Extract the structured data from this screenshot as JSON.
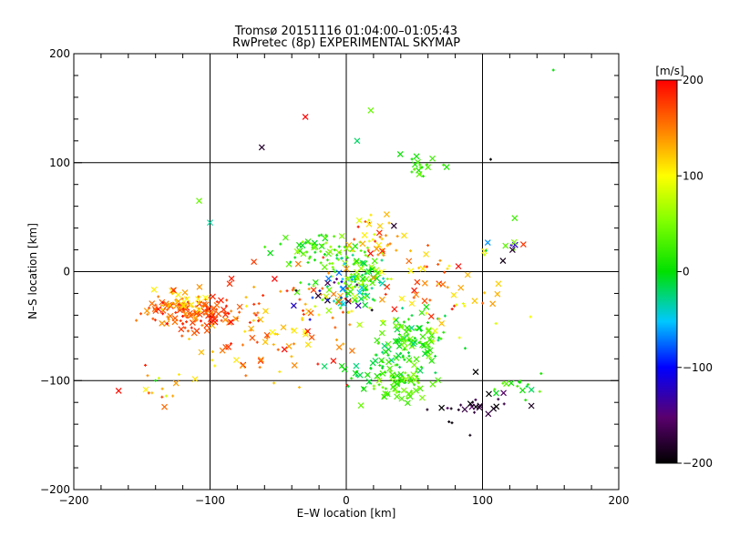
{
  "chart_data": {
    "type": "scatter",
    "title": "Tromsø 20151116 01:04:00–01:05:43",
    "subtitle": "RwPretec (8p) EXPERIMENTAL SKYMAP",
    "xlabel": "E–W location [km]",
    "ylabel": "N–S location [km]",
    "xlim": [
      -200,
      200
    ],
    "ylim": [
      -200,
      200
    ],
    "xticks": [
      "−200",
      "−100",
      "0",
      "100",
      "200"
    ],
    "yticks": [
      "−200",
      "−100",
      "0",
      "100",
      "200"
    ],
    "grid": "major lines at ±100 and 0",
    "colorbar": {
      "label": "[m/s]",
      "range": [
        -200,
        200
      ],
      "ticks": [
        "200",
        "100",
        "0",
        "−100",
        "−200"
      ],
      "colormap": "black-purple-blue-cyan-green-yellow-red"
    },
    "marker_legend": {
      "large_marker": "x",
      "small_marker": "+"
    },
    "clusters": [
      {
        "cx": -115,
        "cy": -38,
        "sx": 18,
        "sy": 8,
        "n": 110,
        "vmin": 140,
        "vmax": 200
      },
      {
        "cx": -120,
        "cy": -30,
        "sx": 10,
        "sy": 6,
        "n": 40,
        "vmin": 100,
        "vmax": 180
      },
      {
        "cx": 48,
        "cy": -65,
        "sx": 12,
        "sy": 14,
        "n": 110,
        "vmin": -30,
        "vmax": 50
      },
      {
        "cx": 38,
        "cy": -105,
        "sx": 12,
        "sy": 7,
        "n": 60,
        "vmin": 10,
        "vmax": 60
      },
      {
        "cx": -25,
        "cy": 22,
        "sx": 15,
        "sy": 8,
        "n": 60,
        "vmin": -10,
        "vmax": 60
      },
      {
        "cx": 10,
        "cy": -5,
        "sx": 10,
        "sy": 15,
        "n": 110,
        "vmin": -50,
        "vmax": 70
      },
      {
        "cx": 55,
        "cy": 95,
        "sx": 8,
        "sy": 8,
        "n": 20,
        "vmin": 0,
        "vmax": 50
      },
      {
        "cx": -60,
        "cy": -50,
        "sx": 30,
        "sy": 25,
        "n": 110,
        "vmin": 100,
        "vmax": 200
      },
      {
        "cx": 20,
        "cy": -90,
        "sx": 12,
        "sy": 8,
        "n": 35,
        "vmin": -20,
        "vmax": 30
      },
      {
        "cx": 100,
        "cy": -125,
        "sx": 20,
        "sy": 8,
        "n": 25,
        "vmin": -200,
        "vmax": -150
      },
      {
        "cx": 70,
        "cy": -20,
        "sx": 25,
        "sy": 20,
        "n": 60,
        "vmin": 80,
        "vmax": 200
      },
      {
        "cx": -10,
        "cy": -20,
        "sx": 12,
        "sy": 12,
        "n": 50,
        "vmin": -200,
        "vmax": 200
      },
      {
        "cx": 20,
        "cy": 30,
        "sx": 10,
        "sy": 15,
        "n": 40,
        "vmin": 80,
        "vmax": 200
      },
      {
        "cx": -130,
        "cy": -110,
        "sx": 15,
        "sy": 10,
        "n": 15,
        "vmin": 80,
        "vmax": 200
      },
      {
        "cx": 130,
        "cy": -105,
        "sx": 8,
        "sy": 5,
        "n": 15,
        "vmin": -20,
        "vmax": 40
      },
      {
        "cx": 115,
        "cy": 20,
        "sx": 10,
        "sy": 10,
        "n": 10,
        "vmin": -200,
        "vmax": 200
      }
    ],
    "points": [
      {
        "x": 152,
        "y": 185,
        "v": 0,
        "m": "+"
      },
      {
        "x": 18,
        "y": 148,
        "v": 40,
        "m": "x"
      },
      {
        "x": -30,
        "y": 142,
        "v": 200,
        "m": "x"
      },
      {
        "x": -62,
        "y": 114,
        "v": -180,
        "m": "x"
      },
      {
        "x": 8,
        "y": 120,
        "v": -20,
        "m": "x"
      },
      {
        "x": -108,
        "y": 65,
        "v": 40,
        "m": "x"
      },
      {
        "x": -100,
        "y": 45,
        "v": -30,
        "m": "x"
      },
      {
        "x": 130,
        "y": 25,
        "v": 180,
        "m": "x"
      },
      {
        "x": 122,
        "y": 20,
        "v": -180,
        "m": "x"
      },
      {
        "x": 115,
        "y": 10,
        "v": -190,
        "m": "x"
      },
      {
        "x": 35,
        "y": 42,
        "v": -180,
        "m": "x"
      },
      {
        "x": 95,
        "y": -92,
        "v": -200,
        "m": "x"
      },
      {
        "x": 70,
        "y": -125,
        "v": -200,
        "m": "x"
      },
      {
        "x": -140,
        "y": -100,
        "v": 0,
        "m": "+"
      },
      {
        "x": 106,
        "y": 103,
        "v": -200,
        "m": "+"
      },
      {
        "x": 142,
        "y": -110,
        "v": 40,
        "m": "+"
      }
    ]
  }
}
